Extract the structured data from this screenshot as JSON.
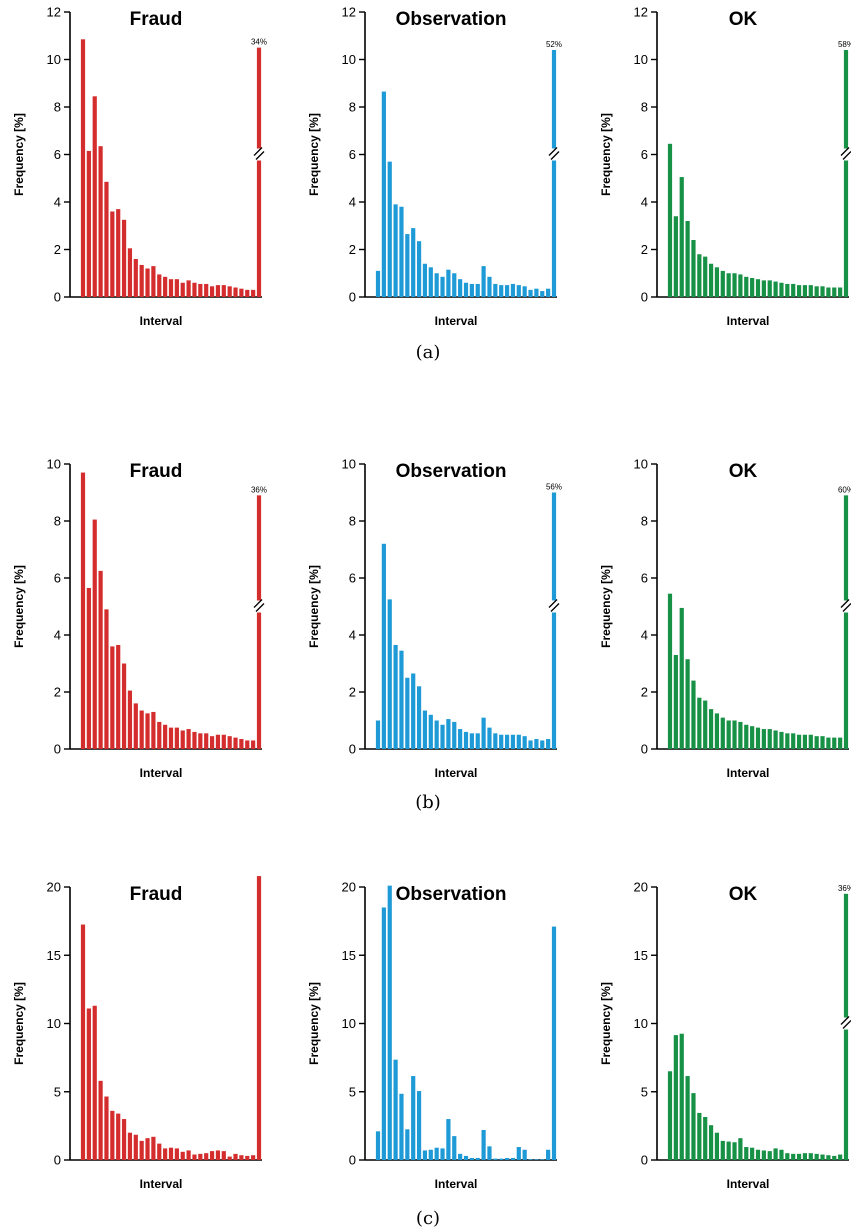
{
  "colors": {
    "Fraud": "#d42d2d",
    "Observation": "#1e9ad6",
    "OK": "#179146"
  },
  "chart_data": [
    {
      "type": "bar",
      "row": 0,
      "col": 0,
      "series": "Fraud",
      "title": "Fraud",
      "xlabel": "Interval",
      "ylabel": "Frequency [%]",
      "ylim": [
        0,
        12
      ],
      "yticks": [
        0,
        2,
        4,
        6,
        8,
        10,
        12
      ],
      "values": [
        10.85,
        6.15,
        8.45,
        6.35,
        4.85,
        3.6,
        3.7,
        3.25,
        2.05,
        1.6,
        1.35,
        1.2,
        1.3,
        0.95,
        0.85,
        0.75,
        0.75,
        0.6,
        0.7,
        0.6,
        0.55,
        0.55,
        0.45,
        0.5,
        0.5,
        0.45,
        0.4,
        0.35,
        0.3,
        0.3,
        10.5
      ],
      "broken_last": true,
      "last_label": "34%"
    },
    {
      "type": "bar",
      "row": 0,
      "col": 1,
      "series": "Observation",
      "title": "Observation",
      "xlabel": "Interval",
      "ylabel": "Frequency [%]",
      "ylim": [
        0,
        12
      ],
      "yticks": [
        0,
        2,
        4,
        6,
        8,
        10,
        12
      ],
      "values": [
        1.1,
        8.65,
        5.7,
        3.9,
        3.8,
        2.65,
        2.9,
        2.35,
        1.4,
        1.25,
        1.0,
        0.85,
        1.15,
        1.0,
        0.75,
        0.6,
        0.55,
        0.55,
        1.3,
        0.85,
        0.55,
        0.5,
        0.5,
        0.55,
        0.5,
        0.45,
        0.3,
        0.35,
        0.25,
        0.35,
        10.4
      ],
      "broken_last": true,
      "last_label": "52%"
    },
    {
      "type": "bar",
      "row": 0,
      "col": 2,
      "series": "OK",
      "title": "OK",
      "xlabel": "Interval",
      "ylabel": "Frequency [%]",
      "ylim": [
        0,
        12
      ],
      "yticks": [
        0,
        2,
        4,
        6,
        8,
        10,
        12
      ],
      "values": [
        6.45,
        3.4,
        5.05,
        3.2,
        2.4,
        1.8,
        1.7,
        1.4,
        1.25,
        1.1,
        1.0,
        1.0,
        0.95,
        0.85,
        0.8,
        0.75,
        0.7,
        0.7,
        0.65,
        0.6,
        0.55,
        0.55,
        0.5,
        0.5,
        0.5,
        0.45,
        0.45,
        0.4,
        0.4,
        0.4,
        10.4
      ],
      "broken_last": true,
      "last_label": "58%"
    },
    {
      "type": "bar",
      "row": 1,
      "col": 0,
      "series": "Fraud",
      "title": "Fraud",
      "xlabel": "Interval",
      "ylabel": "Frequency [%]",
      "ylim": [
        0,
        10
      ],
      "yticks": [
        0,
        2,
        4,
        6,
        8,
        10
      ],
      "values": [
        9.7,
        5.65,
        8.05,
        6.25,
        4.9,
        3.6,
        3.65,
        3.0,
        2.05,
        1.6,
        1.35,
        1.25,
        1.3,
        0.95,
        0.85,
        0.75,
        0.75,
        0.65,
        0.7,
        0.6,
        0.55,
        0.55,
        0.45,
        0.5,
        0.5,
        0.45,
        0.4,
        0.35,
        0.3,
        0.3,
        8.9
      ],
      "broken_last": true,
      "last_label": "36%"
    },
    {
      "type": "bar",
      "row": 1,
      "col": 1,
      "series": "Observation",
      "title": "Observation",
      "xlabel": "Interval",
      "ylabel": "Frequency [%]",
      "ylim": [
        0,
        10
      ],
      "yticks": [
        0,
        2,
        4,
        6,
        8,
        10
      ],
      "values": [
        1.0,
        7.2,
        5.25,
        3.65,
        3.45,
        2.5,
        2.65,
        2.2,
        1.35,
        1.2,
        1.0,
        0.85,
        1.05,
        0.95,
        0.7,
        0.6,
        0.55,
        0.55,
        1.1,
        0.75,
        0.55,
        0.5,
        0.5,
        0.5,
        0.5,
        0.45,
        0.3,
        0.35,
        0.3,
        0.35,
        9.0
      ],
      "broken_last": true,
      "last_label": "56%"
    },
    {
      "type": "bar",
      "row": 1,
      "col": 2,
      "series": "OK",
      "title": "OK",
      "xlabel": "Interval",
      "ylabel": "Frequency [%]",
      "ylim": [
        0,
        10
      ],
      "yticks": [
        0,
        2,
        4,
        6,
        8,
        10
      ],
      "values": [
        5.45,
        3.3,
        4.95,
        3.15,
        2.4,
        1.8,
        1.7,
        1.4,
        1.25,
        1.1,
        1.0,
        1.0,
        0.95,
        0.85,
        0.8,
        0.75,
        0.7,
        0.7,
        0.65,
        0.6,
        0.55,
        0.55,
        0.5,
        0.5,
        0.5,
        0.45,
        0.45,
        0.4,
        0.4,
        0.4,
        8.9
      ],
      "broken_last": true,
      "last_label": "60%"
    },
    {
      "type": "bar",
      "row": 2,
      "col": 0,
      "series": "Fraud",
      "title": "Fraud",
      "xlabel": "Interval",
      "ylabel": "Frequency [%]",
      "ylim": [
        0,
        20
      ],
      "yticks": [
        0,
        5,
        10,
        15,
        20
      ],
      "values": [
        17.25,
        11.1,
        11.3,
        5.8,
        4.65,
        3.6,
        3.4,
        3.0,
        2.0,
        1.85,
        1.4,
        1.6,
        1.7,
        1.2,
        0.85,
        0.9,
        0.85,
        0.6,
        0.7,
        0.4,
        0.45,
        0.5,
        0.65,
        0.7,
        0.65,
        0.25,
        0.45,
        0.35,
        0.3,
        0.35,
        20.8
      ],
      "broken_last": false,
      "last_label": ""
    },
    {
      "type": "bar",
      "row": 2,
      "col": 1,
      "series": "Observation",
      "title": "Observation",
      "xlabel": "Interval",
      "ylabel": "Frequency [%]",
      "ylim": [
        0,
        20
      ],
      "yticks": [
        0,
        5,
        10,
        15,
        20
      ],
      "values": [
        2.1,
        18.5,
        20.1,
        7.35,
        4.85,
        2.25,
        6.15,
        5.05,
        0.7,
        0.75,
        0.9,
        0.85,
        3.0,
        1.75,
        0.45,
        0.3,
        0.15,
        0.15,
        2.2,
        1.0,
        0.1,
        0.1,
        0.15,
        0.15,
        0.95,
        0.75,
        0.05,
        0.05,
        0.05,
        0.75,
        17.1
      ],
      "broken_last": false,
      "last_label": ""
    },
    {
      "type": "bar",
      "row": 2,
      "col": 2,
      "series": "OK",
      "title": "OK",
      "xlabel": "Interval",
      "ylabel": "Frequency [%]",
      "ylim": [
        0,
        20
      ],
      "yticks": [
        0,
        5,
        10,
        15,
        20
      ],
      "values": [
        6.5,
        9.15,
        9.25,
        6.15,
        4.9,
        3.45,
        3.15,
        2.55,
        2.0,
        1.4,
        1.35,
        1.3,
        1.6,
        0.95,
        0.9,
        0.75,
        0.7,
        0.65,
        0.85,
        0.75,
        0.5,
        0.45,
        0.45,
        0.5,
        0.5,
        0.45,
        0.4,
        0.35,
        0.3,
        0.4,
        19.5
      ],
      "broken_last": true,
      "last_label": "36%"
    }
  ],
  "captions": [
    "(a)",
    "(b)",
    "(c)"
  ]
}
